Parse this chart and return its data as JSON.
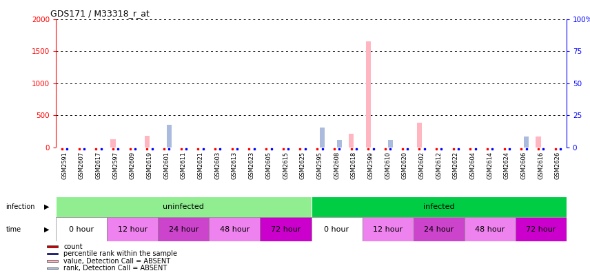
{
  "title": "GDS171 / M33318_r_at",
  "samples": [
    "GSM2591",
    "GSM2607",
    "GSM2617",
    "GSM2597",
    "GSM2609",
    "GSM2619",
    "GSM2601",
    "GSM2611",
    "GSM2621",
    "GSM2603",
    "GSM2613",
    "GSM2623",
    "GSM2605",
    "GSM2615",
    "GSM2625",
    "GSM2595",
    "GSM2608",
    "GSM2618",
    "GSM2599",
    "GSM2610",
    "GSM2620",
    "GSM2602",
    "GSM2612",
    "GSM2622",
    "GSM2604",
    "GSM2614",
    "GSM2624",
    "GSM2606",
    "GSM2616",
    "GSM2626"
  ],
  "absent_count": [
    0,
    0,
    0,
    130,
    0,
    180,
    0,
    0,
    0,
    0,
    0,
    0,
    0,
    0,
    0,
    0,
    0,
    210,
    1650,
    0,
    0,
    390,
    0,
    0,
    0,
    0,
    0,
    0,
    170,
    0
  ],
  "absent_rank": [
    0,
    0,
    0,
    0,
    0,
    0,
    350,
    0,
    0,
    0,
    0,
    0,
    0,
    0,
    0,
    310,
    115,
    0,
    0,
    115,
    0,
    0,
    0,
    0,
    0,
    0,
    0,
    175,
    0,
    0
  ],
  "ylim_left": [
    0,
    2000
  ],
  "ylim_right": [
    0,
    100
  ],
  "yticks_left": [
    0,
    500,
    1000,
    1500,
    2000
  ],
  "yticks_right": [
    0,
    25,
    50,
    75,
    100
  ],
  "infection_groups": [
    {
      "label": "uninfected",
      "start": 0,
      "end": 15,
      "color": "#90EE90"
    },
    {
      "label": "infected",
      "start": 15,
      "end": 30,
      "color": "#00CC44"
    }
  ],
  "time_groups": [
    {
      "label": "0 hour",
      "start": 0,
      "end": 3,
      "color": "#FFFFFF"
    },
    {
      "label": "12 hour",
      "start": 3,
      "end": 6,
      "color": "#EE82EE"
    },
    {
      "label": "24 hour",
      "start": 6,
      "end": 9,
      "color": "#CC44CC"
    },
    {
      "label": "48 hour",
      "start": 9,
      "end": 12,
      "color": "#EE82EE"
    },
    {
      "label": "72 hour",
      "start": 12,
      "end": 15,
      "color": "#CC00CC"
    },
    {
      "label": "0 hour",
      "start": 15,
      "end": 18,
      "color": "#FFFFFF"
    },
    {
      "label": "12 hour",
      "start": 18,
      "end": 21,
      "color": "#EE82EE"
    },
    {
      "label": "24 hour",
      "start": 21,
      "end": 24,
      "color": "#CC44CC"
    },
    {
      "label": "48 hour",
      "start": 24,
      "end": 27,
      "color": "#EE82EE"
    },
    {
      "label": "72 hour",
      "start": 27,
      "end": 30,
      "color": "#CC00CC"
    }
  ],
  "absent_count_color": "#FFB6C1",
  "absent_rank_color": "#AABBDD",
  "bar_width": 0.3,
  "legend_items": [
    {
      "label": "count",
      "color": "#CC0000"
    },
    {
      "label": "percentile rank within the sample",
      "color": "#0000AA"
    },
    {
      "label": "value, Detection Call = ABSENT",
      "color": "#FFB6C1"
    },
    {
      "label": "rank, Detection Call = ABSENT",
      "color": "#AABBDD"
    }
  ],
  "plot_bg_color": "#FFFFFF",
  "xtick_bg_color": "#D3D3D3"
}
